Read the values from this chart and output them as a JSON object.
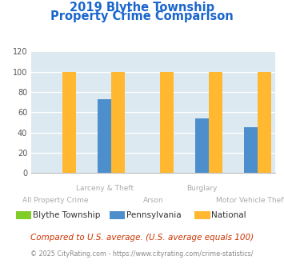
{
  "title_line1": "2019 Blythe Township",
  "title_line2": "Property Crime Comparison",
  "categories": [
    "All Property Crime",
    "Larceny & Theft",
    "Arson",
    "Burglary",
    "Motor Vehicle Theft"
  ],
  "series": {
    "Blythe Township": [
      0,
      0,
      0,
      0,
      0
    ],
    "Pennsylvania": [
      0,
      73,
      0,
      54,
      45
    ],
    "National": [
      100,
      100,
      100,
      100,
      100
    ]
  },
  "colors": {
    "Blythe Township": "#80cc28",
    "Pennsylvania": "#4d8fcc",
    "National": "#ffb830"
  },
  "ylim": [
    0,
    120
  ],
  "yticks": [
    0,
    20,
    40,
    60,
    80,
    100,
    120
  ],
  "bar_width": 0.28,
  "background_color": "#dce9f0",
  "plot_bg_color": "#dce9f0",
  "title_color": "#1a66cc",
  "xlabel_color": "#aaaaaa",
  "footer_text1": "Compared to U.S. average. (U.S. average equals 100)",
  "footer_text2": "© 2025 CityRating.com - https://www.cityrating.com/crime-statistics/",
  "footer_color1": "#cc3300",
  "footer_color2": "#888888",
  "grid_color": "#ffffff",
  "upper_labels": {
    "1": "Larceny & Theft",
    "3": "Burglary"
  },
  "lower_labels": {
    "0": "All Property Crime",
    "2": "Arson",
    "4": "Motor Vehicle Theft"
  }
}
